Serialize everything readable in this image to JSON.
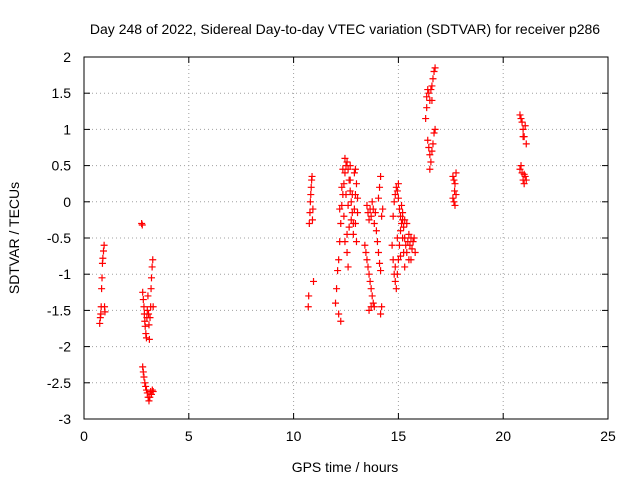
{
  "chart_data": {
    "type": "scatter",
    "title": "Day 248 of 2022, Sidereal Day-to-day VTEC variation (SDTVAR) for receiver p286",
    "xlabel": "GPS time / hours",
    "ylabel": "SDTVAR / TECUs",
    "xlim": [
      0,
      25
    ],
    "ylim": [
      -3,
      2
    ],
    "xticks": [
      0,
      5,
      10,
      15,
      20,
      25
    ],
    "xtick_labels": [
      "0",
      "5",
      "10",
      "15",
      "20",
      "25"
    ],
    "yticks": [
      2,
      1.5,
      1,
      0.5,
      0,
      -0.5,
      -1,
      -1.5,
      -2,
      -2.5,
      -3
    ],
    "ytick_labels": [
      "2",
      "1.5",
      "1",
      "0.5",
      "0",
      "-0.5",
      "-1",
      "-1.5",
      "-2",
      "-2.5",
      "-3"
    ],
    "grid": true,
    "marker": "plus",
    "color": "#ff0000",
    "series": [
      {
        "name": "SDTVAR",
        "points": [
          [
            0.75,
            -1.68
          ],
          [
            0.78,
            -1.6
          ],
          [
            0.8,
            -1.55
          ],
          [
            0.82,
            -1.45
          ],
          [
            0.84,
            -1.2
          ],
          [
            0.86,
            -1.05
          ],
          [
            0.88,
            -0.85
          ],
          [
            0.9,
            -0.78
          ],
          [
            0.93,
            -0.68
          ],
          [
            0.96,
            -0.6
          ],
          [
            0.98,
            -1.45
          ],
          [
            1.0,
            -1.52
          ],
          [
            2.75,
            -0.3
          ],
          [
            2.78,
            -0.32
          ],
          [
            2.8,
            -1.25
          ],
          [
            2.83,
            -1.35
          ],
          [
            2.86,
            -1.45
          ],
          [
            2.88,
            -1.55
          ],
          [
            2.9,
            -1.65
          ],
          [
            2.92,
            -1.72
          ],
          [
            2.95,
            -1.82
          ],
          [
            2.98,
            -1.88
          ],
          [
            3.0,
            -1.6
          ],
          [
            3.02,
            -1.5
          ],
          [
            3.05,
            -1.3
          ],
          [
            3.08,
            -1.55
          ],
          [
            3.1,
            -1.7
          ],
          [
            3.12,
            -1.9
          ],
          [
            3.15,
            -1.6
          ],
          [
            3.18,
            -1.45
          ],
          [
            3.2,
            -1.2
          ],
          [
            3.22,
            -1.05
          ],
          [
            3.25,
            -0.9
          ],
          [
            3.28,
            -0.8
          ],
          [
            3.3,
            -1.45
          ],
          [
            2.8,
            -2.28
          ],
          [
            2.83,
            -2.35
          ],
          [
            2.86,
            -2.42
          ],
          [
            2.9,
            -2.5
          ],
          [
            2.94,
            -2.55
          ],
          [
            2.98,
            -2.6
          ],
          [
            3.02,
            -2.64
          ],
          [
            3.06,
            -2.7
          ],
          [
            3.1,
            -2.75
          ],
          [
            3.14,
            -2.7
          ],
          [
            3.18,
            -2.62
          ],
          [
            3.22,
            -2.66
          ],
          [
            3.26,
            -2.6
          ],
          [
            3.3,
            -2.62
          ],
          [
            10.7,
            -1.45
          ],
          [
            10.72,
            -1.3
          ],
          [
            10.75,
            -0.3
          ],
          [
            10.78,
            -0.15
          ],
          [
            10.8,
            0.0
          ],
          [
            10.82,
            0.1
          ],
          [
            10.84,
            0.2
          ],
          [
            10.86,
            0.3
          ],
          [
            10.88,
            0.35
          ],
          [
            10.9,
            -0.25
          ],
          [
            10.92,
            -0.1
          ],
          [
            10.95,
            -1.1
          ],
          [
            12.0,
            -1.4
          ],
          [
            12.05,
            -1.2
          ],
          [
            12.1,
            -0.95
          ],
          [
            12.15,
            -0.8
          ],
          [
            12.2,
            -0.55
          ],
          [
            12.25,
            -0.3
          ],
          [
            12.3,
            -0.05
          ],
          [
            12.35,
            0.1
          ],
          [
            12.4,
            0.25
          ],
          [
            12.45,
            0.4
          ],
          [
            12.5,
            0.5
          ],
          [
            12.55,
            0.55
          ],
          [
            12.6,
            0.45
          ],
          [
            12.65,
            0.3
          ],
          [
            12.7,
            0.15
          ],
          [
            12.75,
            0.0
          ],
          [
            12.8,
            -0.15
          ],
          [
            12.85,
            -0.3
          ],
          [
            12.9,
            -0.1
          ],
          [
            12.95,
            0.1
          ],
          [
            13.0,
            0.25
          ],
          [
            13.05,
            0.05
          ],
          [
            12.2,
            -0.1
          ],
          [
            12.3,
            0.2
          ],
          [
            12.4,
            -0.2
          ],
          [
            12.5,
            0.1
          ],
          [
            12.6,
            -0.05
          ],
          [
            12.7,
            0.3
          ],
          [
            12.8,
            0.1
          ],
          [
            12.9,
            0.4
          ],
          [
            12.15,
            -1.55
          ],
          [
            12.25,
            -1.65
          ],
          [
            12.45,
            -0.55
          ],
          [
            12.55,
            -0.45
          ],
          [
            12.65,
            -0.35
          ],
          [
            12.75,
            -0.25
          ],
          [
            12.85,
            -0.45
          ],
          [
            12.95,
            -0.3
          ],
          [
            13.05,
            -0.15
          ],
          [
            12.35,
            0.45
          ],
          [
            12.45,
            0.6
          ],
          [
            12.7,
            0.5
          ],
          [
            12.95,
            0.45
          ],
          [
            13.0,
            -0.55
          ],
          [
            12.6,
            -0.9
          ],
          [
            12.55,
            -0.7
          ],
          [
            13.4,
            -0.6
          ],
          [
            13.45,
            -0.7
          ],
          [
            13.5,
            -0.8
          ],
          [
            13.55,
            -0.9
          ],
          [
            13.6,
            -1.0
          ],
          [
            13.65,
            -1.1
          ],
          [
            13.7,
            -1.2
          ],
          [
            13.75,
            -1.3
          ],
          [
            13.8,
            -1.4
          ],
          [
            13.85,
            -1.45
          ],
          [
            13.5,
            -0.05
          ],
          [
            13.55,
            -0.15
          ],
          [
            13.6,
            -0.25
          ],
          [
            13.65,
            -0.1
          ],
          [
            13.7,
            -0.2
          ],
          [
            13.75,
            0.0
          ],
          [
            13.8,
            -0.1
          ],
          [
            13.85,
            -0.3
          ],
          [
            13.9,
            -0.15
          ],
          [
            13.95,
            -0.4
          ],
          [
            14.0,
            -0.55
          ],
          [
            14.05,
            -0.7
          ],
          [
            14.1,
            -0.85
          ],
          [
            14.15,
            -0.95
          ],
          [
            14.2,
            -0.2
          ],
          [
            14.25,
            -0.1
          ],
          [
            14.05,
            0.05
          ],
          [
            14.1,
            0.2
          ],
          [
            14.15,
            0.35
          ],
          [
            13.6,
            -1.5
          ],
          [
            13.7,
            -1.45
          ],
          [
            14.15,
            -1.55
          ],
          [
            14.2,
            -1.45
          ],
          [
            14.7,
            -0.6
          ],
          [
            14.75,
            -0.8
          ],
          [
            14.8,
            -1.0
          ],
          [
            14.85,
            -1.1
          ],
          [
            14.9,
            -1.2
          ],
          [
            14.95,
            -1.0
          ],
          [
            15.0,
            -0.8
          ],
          [
            15.05,
            -0.6
          ],
          [
            15.1,
            -0.4
          ],
          [
            15.15,
            -0.3
          ],
          [
            15.2,
            -0.5
          ],
          [
            15.25,
            -0.7
          ],
          [
            15.3,
            -0.9
          ],
          [
            14.8,
            0.0
          ],
          [
            14.85,
            0.1
          ],
          [
            14.9,
            0.2
          ],
          [
            14.95,
            0.15
          ],
          [
            15.0,
            0.05
          ],
          [
            15.05,
            -0.1
          ],
          [
            15.1,
            -0.2
          ],
          [
            15.15,
            -0.05
          ],
          [
            15.2,
            -0.25
          ],
          [
            15.25,
            -0.35
          ],
          [
            15.3,
            -0.5
          ],
          [
            15.35,
            -0.6
          ],
          [
            15.4,
            -0.7
          ],
          [
            15.45,
            -0.55
          ],
          [
            15.5,
            -0.45
          ],
          [
            15.55,
            -0.6
          ],
          [
            15.6,
            -0.5
          ],
          [
            15.65,
            -0.65
          ],
          [
            15.7,
            -0.55
          ],
          [
            15.75,
            -0.5
          ],
          [
            15.8,
            -0.7
          ],
          [
            14.75,
            -0.2
          ],
          [
            15.0,
            0.25
          ],
          [
            15.2,
            -0.15
          ],
          [
            15.4,
            -0.3
          ],
          [
            15.6,
            -0.8
          ],
          [
            14.85,
            -0.9
          ],
          [
            14.95,
            -0.5
          ],
          [
            15.1,
            -0.75
          ],
          [
            15.3,
            -0.25
          ],
          [
            15.5,
            -0.8
          ],
          [
            16.3,
            1.15
          ],
          [
            16.35,
            1.45
          ],
          [
            16.4,
            1.55
          ],
          [
            16.45,
            1.5
          ],
          [
            16.5,
            1.4
          ],
          [
            16.55,
            1.55
          ],
          [
            16.6,
            1.6
          ],
          [
            16.65,
            1.7
          ],
          [
            16.7,
            1.8
          ],
          [
            16.75,
            1.85
          ],
          [
            16.4,
            0.85
          ],
          [
            16.45,
            0.75
          ],
          [
            16.5,
            0.65
          ],
          [
            16.55,
            0.55
          ],
          [
            16.6,
            0.7
          ],
          [
            16.65,
            0.8
          ],
          [
            16.7,
            0.95
          ],
          [
            16.75,
            1.0
          ],
          [
            16.5,
            0.45
          ],
          [
            16.35,
            1.3
          ],
          [
            16.6,
            1.4
          ],
          [
            17.6,
            0.35
          ],
          [
            17.65,
            0.3
          ],
          [
            17.7,
            0.25
          ],
          [
            17.75,
            0.4
          ],
          [
            17.6,
            0.05
          ],
          [
            17.65,
            0.0
          ],
          [
            17.7,
            -0.05
          ],
          [
            17.75,
            0.1
          ],
          [
            17.68,
            0.15
          ],
          [
            20.8,
            1.2
          ],
          [
            20.85,
            1.15
          ],
          [
            20.9,
            1.1
          ],
          [
            20.95,
            1.0
          ],
          [
            21.0,
            0.9
          ],
          [
            21.05,
            1.05
          ],
          [
            21.1,
            0.8
          ],
          [
            20.95,
            0.9
          ],
          [
            20.85,
            0.5
          ],
          [
            20.9,
            0.4
          ],
          [
            20.95,
            0.3
          ],
          [
            21.0,
            0.25
          ],
          [
            21.05,
            0.35
          ],
          [
            21.1,
            0.3
          ],
          [
            20.8,
            0.45
          ],
          [
            21.0,
            0.38
          ]
        ]
      }
    ]
  }
}
